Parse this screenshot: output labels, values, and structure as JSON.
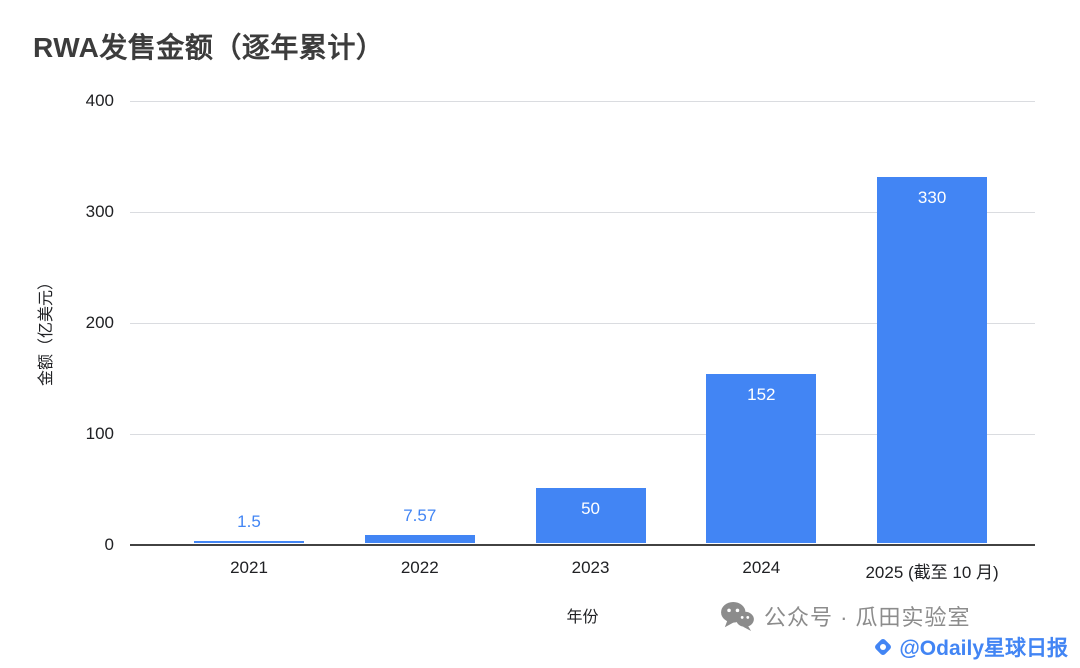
{
  "title": "RWA发售金额（逐年累计）",
  "chart_data": {
    "type": "bar",
    "categories": [
      "2021",
      "2022",
      "2023",
      "2024",
      "2025 (截至 10 月)"
    ],
    "values": [
      1.5,
      7.57,
      50,
      152,
      330
    ],
    "title": "RWA发售金额（逐年累计）",
    "xlabel": "年份",
    "ylabel": "金额（亿美元）",
    "ylim": [
      0,
      400
    ],
    "yticks": [
      0,
      100,
      200,
      300,
      400
    ],
    "grid": true,
    "legend": "none",
    "bar_color": "#4285f4",
    "label_inside_color": "#ffffff",
    "label_outside_color": "#4285f4"
  },
  "watermarks": {
    "wechat_label": "公众号 · 瓜田实验室",
    "odaily_label": "@Odaily星球日报"
  }
}
